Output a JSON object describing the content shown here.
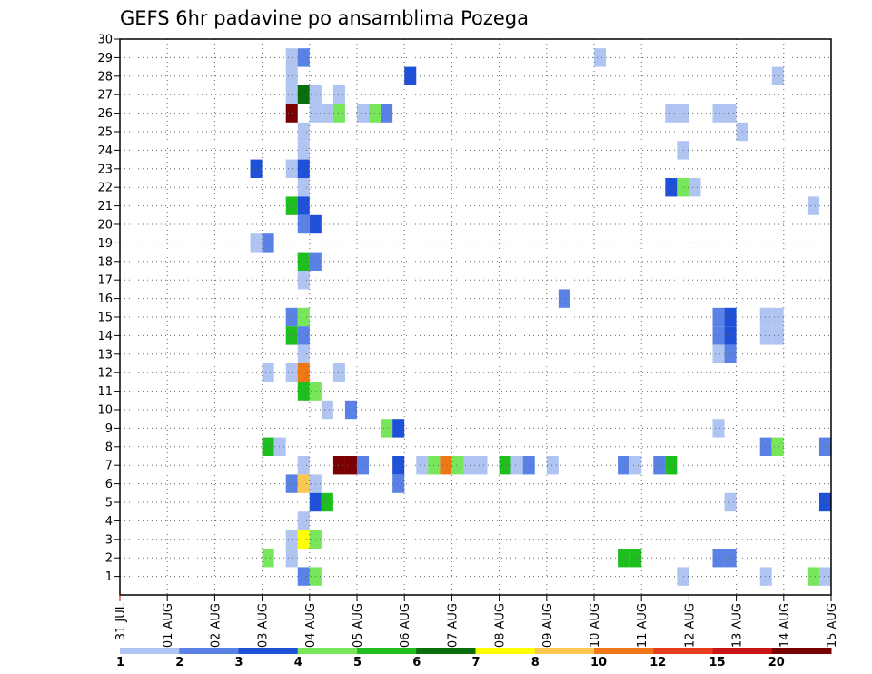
{
  "chart_data": {
    "type": "heatmap",
    "title": "GEFS 6hr padavine po ansamblima Pozega",
    "xlabel": "",
    "ylabel": "",
    "x_tick_labels": [
      "31 JUL",
      "01 AUG",
      "02 AUG",
      "03 AUG",
      "04 AUG",
      "05 AUG",
      "06 AUG",
      "07 AUG",
      "08 AUG",
      "09 AUG",
      "10 AUG",
      "11 AUG",
      "12 AUG",
      "13 AUG",
      "14 AUG",
      "15 AUG"
    ],
    "xlim": [
      0,
      15
    ],
    "ylim": [
      0,
      30
    ],
    "y_ticks": [
      1,
      2,
      3,
      4,
      5,
      6,
      7,
      8,
      9,
      10,
      11,
      12,
      13,
      14,
      15,
      16,
      17,
      18,
      19,
      20,
      21,
      22,
      23,
      24,
      25,
      26,
      27,
      28,
      29,
      30
    ],
    "grid": true,
    "colorbar": {
      "labels": [
        "1",
        "2",
        "3",
        "4",
        "5",
        "6",
        "7",
        "8",
        "10",
        "12",
        "15",
        "20"
      ],
      "colors": [
        "#b0c4f2",
        "#5a82e6",
        "#1e50d8",
        "#78e65a",
        "#1ebe1e",
        "#0a6e0a",
        "#ffff00",
        "#fac850",
        "#f07814",
        "#e63c1e",
        "#c81414",
        "#780000"
      ]
    },
    "cells": [
      {
        "t": 3.5,
        "m": 29,
        "c": 0
      },
      {
        "t": 3.75,
        "m": 29,
        "c": 1
      },
      {
        "t": 10.0,
        "m": 29,
        "c": 0
      },
      {
        "t": 3.5,
        "m": 28,
        "c": 0
      },
      {
        "t": 6.0,
        "m": 28,
        "c": 2
      },
      {
        "t": 13.75,
        "m": 28,
        "c": 0
      },
      {
        "t": 3.5,
        "m": 27,
        "c": 0
      },
      {
        "t": 3.75,
        "m": 27,
        "c": 5
      },
      {
        "t": 4.0,
        "m": 27,
        "c": 0
      },
      {
        "t": 4.5,
        "m": 27,
        "c": 0
      },
      {
        "t": 3.5,
        "m": 26,
        "c": 11
      },
      {
        "t": 4.0,
        "m": 26,
        "c": 0
      },
      {
        "t": 4.25,
        "m": 26,
        "c": 0
      },
      {
        "t": 4.5,
        "m": 26,
        "c": 3
      },
      {
        "t": 5.0,
        "m": 26,
        "c": 0
      },
      {
        "t": 5.25,
        "m": 26,
        "c": 3
      },
      {
        "t": 5.5,
        "m": 26,
        "c": 1
      },
      {
        "t": 11.5,
        "m": 26,
        "c": 0
      },
      {
        "t": 11.75,
        "m": 26,
        "c": 0
      },
      {
        "t": 12.5,
        "m": 26,
        "c": 0
      },
      {
        "t": 12.75,
        "m": 26,
        "c": 0
      },
      {
        "t": 3.75,
        "m": 25,
        "c": 0
      },
      {
        "t": 13.0,
        "m": 25,
        "c": 0
      },
      {
        "t": 3.75,
        "m": 24,
        "c": 0
      },
      {
        "t": 11.75,
        "m": 24,
        "c": 0
      },
      {
        "t": 2.75,
        "m": 23,
        "c": 2
      },
      {
        "t": 3.5,
        "m": 23,
        "c": 0
      },
      {
        "t": 3.75,
        "m": 23,
        "c": 2
      },
      {
        "t": 3.75,
        "m": 22,
        "c": 0
      },
      {
        "t": 11.5,
        "m": 22,
        "c": 2
      },
      {
        "t": 11.75,
        "m": 22,
        "c": 3
      },
      {
        "t": 12.0,
        "m": 22,
        "c": 0
      },
      {
        "t": 3.5,
        "m": 21,
        "c": 4
      },
      {
        "t": 3.75,
        "m": 21,
        "c": 2
      },
      {
        "t": 14.5,
        "m": 21,
        "c": 0
      },
      {
        "t": 3.75,
        "m": 20,
        "c": 1
      },
      {
        "t": 4.0,
        "m": 20,
        "c": 2
      },
      {
        "t": 2.75,
        "m": 19,
        "c": 0
      },
      {
        "t": 3.0,
        "m": 19,
        "c": 1
      },
      {
        "t": 3.75,
        "m": 18,
        "c": 4
      },
      {
        "t": 4.0,
        "m": 18,
        "c": 1
      },
      {
        "t": 3.75,
        "m": 17,
        "c": 0
      },
      {
        "t": 9.25,
        "m": 16,
        "c": 1
      },
      {
        "t": 3.5,
        "m": 15,
        "c": 1
      },
      {
        "t": 3.75,
        "m": 15,
        "c": 3
      },
      {
        "t": 12.5,
        "m": 15,
        "c": 1
      },
      {
        "t": 12.75,
        "m": 15,
        "c": 2
      },
      {
        "t": 13.5,
        "m": 15,
        "c": 0
      },
      {
        "t": 13.75,
        "m": 15,
        "c": 0
      },
      {
        "t": 3.5,
        "m": 14,
        "c": 4
      },
      {
        "t": 3.75,
        "m": 14,
        "c": 1
      },
      {
        "t": 12.5,
        "m": 14,
        "c": 1
      },
      {
        "t": 12.75,
        "m": 14,
        "c": 2
      },
      {
        "t": 13.5,
        "m": 14,
        "c": 0
      },
      {
        "t": 13.75,
        "m": 14,
        "c": 0
      },
      {
        "t": 3.75,
        "m": 13,
        "c": 0
      },
      {
        "t": 12.5,
        "m": 13,
        "c": 0
      },
      {
        "t": 12.75,
        "m": 13,
        "c": 1
      },
      {
        "t": 3.0,
        "m": 12,
        "c": 0
      },
      {
        "t": 3.5,
        "m": 12,
        "c": 0
      },
      {
        "t": 3.75,
        "m": 12,
        "c": 8
      },
      {
        "t": 4.5,
        "m": 12,
        "c": 0
      },
      {
        "t": 3.75,
        "m": 11,
        "c": 4
      },
      {
        "t": 4.0,
        "m": 11,
        "c": 3
      },
      {
        "t": 4.25,
        "m": 10,
        "c": 0
      },
      {
        "t": 4.75,
        "m": 10,
        "c": 1
      },
      {
        "t": 5.5,
        "m": 9,
        "c": 3
      },
      {
        "t": 5.75,
        "m": 9,
        "c": 2
      },
      {
        "t": 12.5,
        "m": 9,
        "c": 0
      },
      {
        "t": 3.0,
        "m": 8,
        "c": 4
      },
      {
        "t": 3.25,
        "m": 8,
        "c": 0
      },
      {
        "t": 13.5,
        "m": 8,
        "c": 1
      },
      {
        "t": 13.75,
        "m": 8,
        "c": 3
      },
      {
        "t": 14.75,
        "m": 8,
        "c": 1
      },
      {
        "t": 3.75,
        "m": 7,
        "c": 0
      },
      {
        "t": 4.5,
        "m": 7,
        "c": 11
      },
      {
        "t": 4.75,
        "m": 7,
        "c": 11
      },
      {
        "t": 5.0,
        "m": 7,
        "c": 1
      },
      {
        "t": 5.75,
        "m": 7,
        "c": 2
      },
      {
        "t": 6.25,
        "m": 7,
        "c": 0
      },
      {
        "t": 6.5,
        "m": 7,
        "c": 3
      },
      {
        "t": 6.75,
        "m": 7,
        "c": 8
      },
      {
        "t": 7.0,
        "m": 7,
        "c": 3
      },
      {
        "t": 7.25,
        "m": 7,
        "c": 0
      },
      {
        "t": 7.5,
        "m": 7,
        "c": 0
      },
      {
        "t": 8.0,
        "m": 7,
        "c": 4
      },
      {
        "t": 8.25,
        "m": 7,
        "c": 0
      },
      {
        "t": 8.5,
        "m": 7,
        "c": 1
      },
      {
        "t": 9.0,
        "m": 7,
        "c": 0
      },
      {
        "t": 10.5,
        "m": 7,
        "c": 1
      },
      {
        "t": 10.75,
        "m": 7,
        "c": 0
      },
      {
        "t": 11.25,
        "m": 7,
        "c": 1
      },
      {
        "t": 11.5,
        "m": 7,
        "c": 4
      },
      {
        "t": 3.5,
        "m": 6,
        "c": 1
      },
      {
        "t": 3.75,
        "m": 6,
        "c": 7
      },
      {
        "t": 4.0,
        "m": 6,
        "c": 0
      },
      {
        "t": 5.75,
        "m": 6,
        "c": 1
      },
      {
        "t": 4.0,
        "m": 5,
        "c": 2
      },
      {
        "t": 4.25,
        "m": 5,
        "c": 4
      },
      {
        "t": 12.75,
        "m": 5,
        "c": 0
      },
      {
        "t": 14.75,
        "m": 5,
        "c": 2
      },
      {
        "t": 3.75,
        "m": 4,
        "c": 0
      },
      {
        "t": 3.5,
        "m": 3,
        "c": 0
      },
      {
        "t": 3.75,
        "m": 3,
        "c": 6
      },
      {
        "t": 4.0,
        "m": 3,
        "c": 3
      },
      {
        "t": 3.0,
        "m": 2,
        "c": 3
      },
      {
        "t": 3.5,
        "m": 2,
        "c": 0
      },
      {
        "t": 10.5,
        "m": 2,
        "c": 4
      },
      {
        "t": 10.75,
        "m": 2,
        "c": 4
      },
      {
        "t": 12.5,
        "m": 2,
        "c": 1
      },
      {
        "t": 12.75,
        "m": 2,
        "c": 1
      },
      {
        "t": 3.75,
        "m": 1,
        "c": 1
      },
      {
        "t": 4.0,
        "m": 1,
        "c": 3
      },
      {
        "t": 11.75,
        "m": 1,
        "c": 0
      },
      {
        "t": 13.5,
        "m": 1,
        "c": 0
      },
      {
        "t": 14.5,
        "m": 1,
        "c": 3
      },
      {
        "t": 14.75,
        "m": 1,
        "c": 0
      }
    ]
  }
}
